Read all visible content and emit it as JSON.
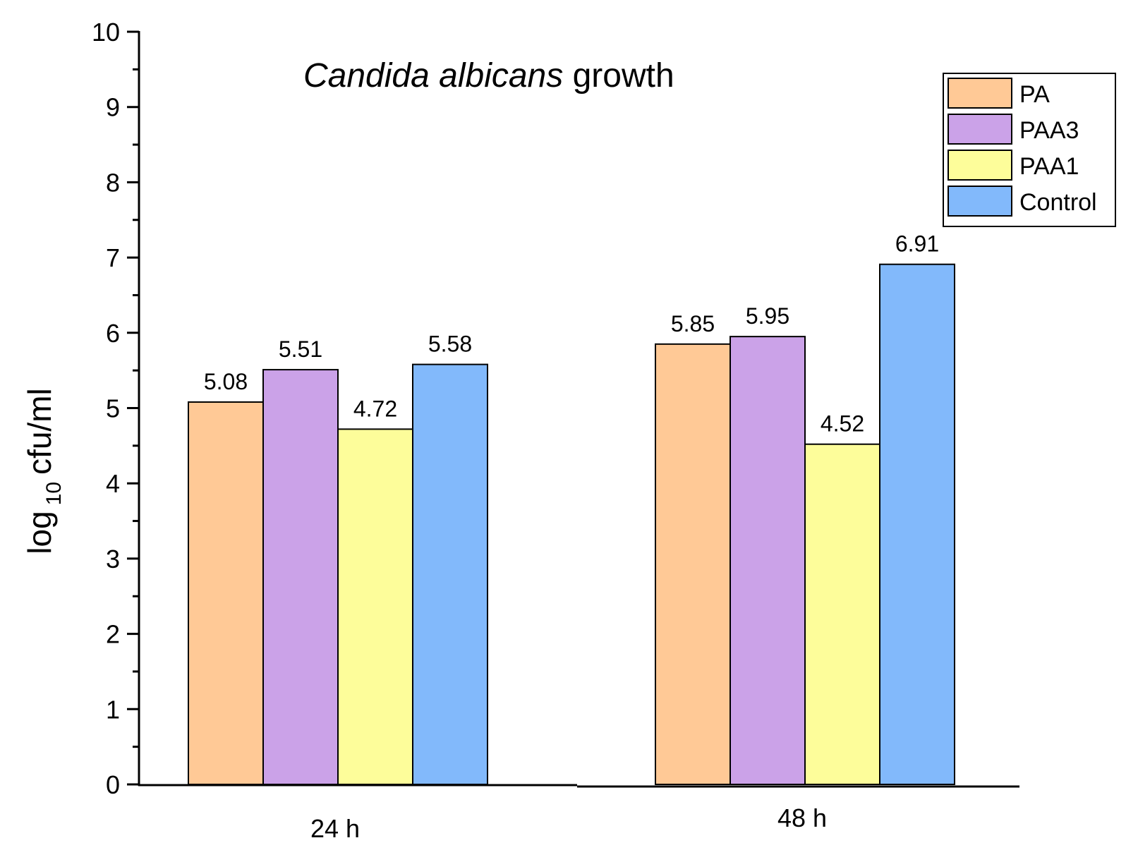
{
  "chart_data": {
    "type": "bar",
    "title_italic": "Candida albicans",
    "title_rest": " growth",
    "ylabel": "cfu/ml",
    "ylabel_prefix": "log",
    "ylabel_subscript": "10",
    "xlabel": "",
    "categories": [
      "24 h",
      "48 h"
    ],
    "series": [
      {
        "name": "PA",
        "color": "#FFC996",
        "values": [
          5.08,
          5.85
        ],
        "labels": [
          "5.08",
          "5.85"
        ]
      },
      {
        "name": "PAA3",
        "color": "#CBA2E8",
        "values": [
          5.51,
          5.95
        ],
        "labels": [
          "5.51",
          "5.95"
        ]
      },
      {
        "name": "PAA1",
        "color": "#FDFD9A",
        "values": [
          4.72,
          4.52
        ],
        "labels": [
          "4.72",
          "4.52"
        ]
      },
      {
        "name": "Control",
        "color": "#82B9FB",
        "values": [
          5.58,
          6.91
        ],
        "labels": [
          "5.58",
          "6.91"
        ]
      }
    ],
    "ylim": [
      0,
      10
    ],
    "yticks": [
      "0",
      "1",
      "2",
      "3",
      "4",
      "5",
      "6",
      "7",
      "8",
      "9",
      "10"
    ],
    "legend_position": "top-right",
    "grid": false
  }
}
